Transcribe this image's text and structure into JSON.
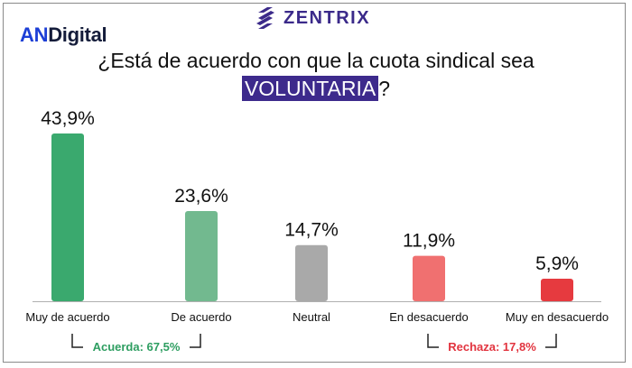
{
  "header": {
    "brand_an": "AN",
    "brand_digital": "Digital",
    "logo_text": "ZENTRIX"
  },
  "title": {
    "line1": "¿Está de acuerdo con que la cuota sindical sea",
    "highlight": "VOLUNTARIA",
    "suffix": "?"
  },
  "colors": {
    "accent_purple": "#3d2a8c",
    "brand_blue": "#1d3fd6",
    "agree_green": "#2e9e61",
    "disagree_red": "#e2343f"
  },
  "chart_data": {
    "type": "bar",
    "categories": [
      "Muy de acuerdo",
      "De acuerdo",
      "Neutral",
      "En desacuerdo",
      "Muy en desacuerdo"
    ],
    "values": [
      43.9,
      23.6,
      14.7,
      11.9,
      5.9
    ],
    "value_labels": [
      "43,9%",
      "23,6%",
      "14,7%",
      "11,9%",
      "5,9%"
    ],
    "bar_colors": [
      "#3aa96e",
      "#72b98f",
      "#a9a9a9",
      "#f07070",
      "#e63a3f"
    ],
    "ylim": [
      0,
      43.9
    ],
    "unit": "%",
    "groups": [
      {
        "label": "Acuerda: 67,5%",
        "color": "#2e9e61",
        "categories": [
          "Muy de acuerdo",
          "De acuerdo"
        ]
      },
      {
        "label": "Rechaza: 17,8%",
        "color": "#e2343f",
        "categories": [
          "En desacuerdo",
          "Muy en desacuerdo"
        ]
      }
    ]
  }
}
